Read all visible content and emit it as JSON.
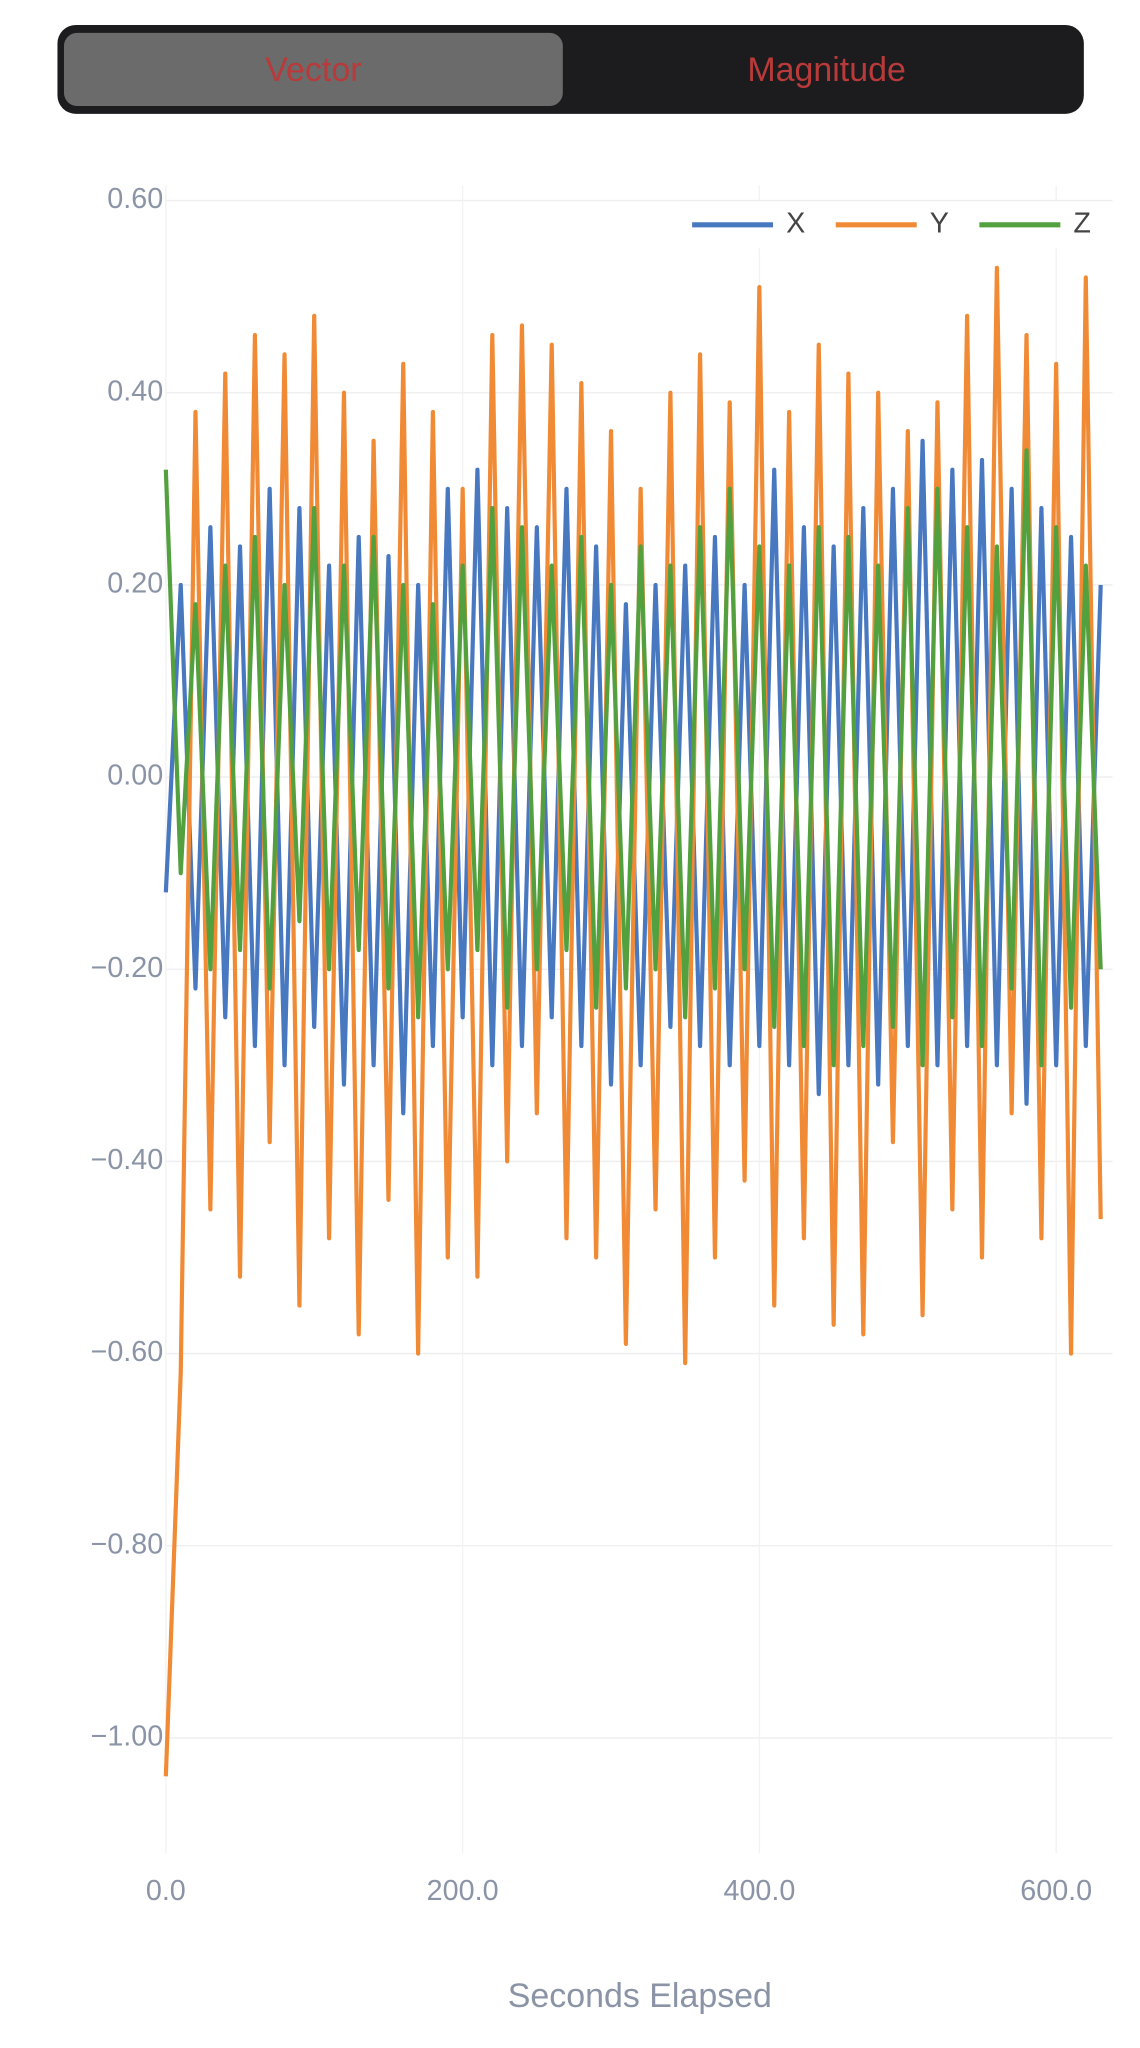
{
  "tabs": [
    "Vector",
    "Magnitude"
  ],
  "chart_data": {
    "type": "line",
    "x_label": "Seconds Elapsed",
    "x": [
      0,
      10,
      20,
      30,
      40,
      50,
      60,
      70,
      80,
      90,
      100,
      110,
      120,
      130,
      140,
      150,
      160,
      170,
      180,
      190,
      200,
      210,
      220,
      230,
      240,
      250,
      260,
      270,
      280,
      290,
      300,
      310,
      320,
      330,
      340,
      350,
      360,
      370,
      380,
      390,
      400,
      410,
      420,
      430,
      440,
      450,
      460,
      470,
      480,
      490,
      500,
      510,
      520,
      530,
      540,
      550,
      560,
      570,
      580,
      590,
      600,
      610,
      620,
      630
    ],
    "series": [
      {
        "name": "X",
        "color": "#4878c0",
        "values": [
          -0.12,
          0.2,
          -0.22,
          0.26,
          -0.25,
          0.24,
          -0.28,
          0.3,
          -0.3,
          0.28,
          -0.26,
          0.22,
          -0.32,
          0.25,
          -0.3,
          0.23,
          -0.35,
          0.2,
          -0.28,
          0.3,
          -0.25,
          0.32,
          -0.3,
          0.28,
          -0.28,
          0.26,
          -0.25,
          0.3,
          -0.28,
          0.24,
          -0.32,
          0.18,
          -0.3,
          0.2,
          -0.26,
          0.22,
          -0.28,
          0.25,
          -0.3,
          0.2,
          -0.28,
          0.32,
          -0.3,
          0.26,
          -0.33,
          0.24,
          -0.3,
          0.28,
          -0.32,
          0.3,
          -0.28,
          0.35,
          -0.3,
          0.32,
          -0.28,
          0.33,
          -0.3,
          0.3,
          -0.34,
          0.28,
          -0.3,
          0.25,
          -0.28,
          0.2
        ]
      },
      {
        "name": "Y",
        "color": "#f08a35",
        "values": [
          -1.04,
          -0.62,
          0.38,
          -0.45,
          0.42,
          -0.52,
          0.46,
          -0.38,
          0.44,
          -0.55,
          0.48,
          -0.48,
          0.4,
          -0.58,
          0.35,
          -0.44,
          0.43,
          -0.6,
          0.38,
          -0.5,
          0.3,
          -0.52,
          0.46,
          -0.4,
          0.47,
          -0.35,
          0.45,
          -0.48,
          0.41,
          -0.5,
          0.36,
          -0.59,
          0.3,
          -0.45,
          0.4,
          -0.61,
          0.44,
          -0.5,
          0.39,
          -0.42,
          0.51,
          -0.55,
          0.38,
          -0.48,
          0.45,
          -0.57,
          0.42,
          -0.58,
          0.4,
          -0.38,
          0.36,
          -0.56,
          0.39,
          -0.45,
          0.48,
          -0.5,
          0.53,
          -0.35,
          0.46,
          -0.48,
          0.43,
          -0.6,
          0.52,
          -0.46
        ]
      },
      {
        "name": "Z",
        "color": "#52a03e",
        "values": [
          0.32,
          -0.1,
          0.18,
          -0.2,
          0.22,
          -0.18,
          0.25,
          -0.22,
          0.2,
          -0.15,
          0.28,
          -0.2,
          0.22,
          -0.18,
          0.25,
          -0.22,
          0.2,
          -0.25,
          0.18,
          -0.2,
          0.22,
          -0.18,
          0.28,
          -0.24,
          0.26,
          -0.2,
          0.22,
          -0.18,
          0.25,
          -0.24,
          0.2,
          -0.22,
          0.24,
          -0.2,
          0.22,
          -0.25,
          0.26,
          -0.22,
          0.3,
          -0.2,
          0.24,
          -0.26,
          0.22,
          -0.28,
          0.26,
          -0.3,
          0.25,
          -0.28,
          0.22,
          -0.26,
          0.28,
          -0.3,
          0.3,
          -0.25,
          0.26,
          -0.28,
          0.24,
          -0.22,
          0.34,
          -0.3,
          0.26,
          -0.24,
          0.22,
          -0.2
        ]
      }
    ],
    "xlim": [
      0,
      638
    ],
    "ylim": [
      -1.12,
      0.64
    ],
    "xticks": [
      {
        "value": 0,
        "label": "0.0"
      },
      {
        "value": 200,
        "label": "200.0"
      },
      {
        "value": 400,
        "label": "400.0"
      },
      {
        "value": 600,
        "label": "600.0"
      }
    ],
    "yticks": [
      {
        "value": -1.0,
        "label": "−1.00"
      },
      {
        "value": -0.8,
        "label": "−0.80"
      },
      {
        "value": -0.6,
        "label": "−0.60"
      },
      {
        "value": -0.4,
        "label": "−0.40"
      },
      {
        "value": -0.2,
        "label": "−0.20"
      },
      {
        "value": 0,
        "label": "0.00"
      },
      {
        "value": 0.2,
        "label": "0.20"
      },
      {
        "value": 0.4,
        "label": "0.40"
      },
      {
        "value": 0.6,
        "label": "0.60"
      }
    ],
    "grid": true,
    "legend": "top-right"
  }
}
